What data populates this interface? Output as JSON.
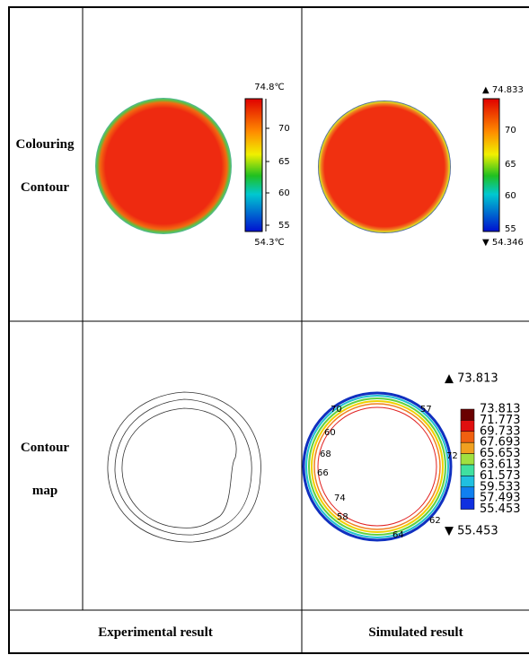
{
  "table": {
    "row_labels": [
      [
        "Colouring",
        "Contour"
      ],
      [
        "Contour",
        "map"
      ]
    ],
    "column_labels": [
      "Experimental result",
      "Simulated result"
    ]
  },
  "experimental_colorbar": {
    "max": "74.8℃",
    "ticks": [
      "70",
      "65",
      "60",
      "55"
    ],
    "min": "54.3℃"
  },
  "simulated_colorbar": {
    "max": "▲ 74.833",
    "ticks": [
      "70",
      "65",
      "60",
      "55"
    ],
    "min": "▼ 54.346"
  },
  "simulated_contour": {
    "max": "▲ 73.813",
    "legend": [
      "73.813",
      "71.773",
      "69.733",
      "67.693",
      "65.653",
      "63.613",
      "61.573",
      "59.533",
      "57.493",
      "55.453"
    ],
    "min": "▼ 55.453",
    "labels": [
      "70",
      "57",
      "60",
      "68",
      "66",
      "72",
      "74",
      "58",
      "62",
      "64"
    ]
  }
}
